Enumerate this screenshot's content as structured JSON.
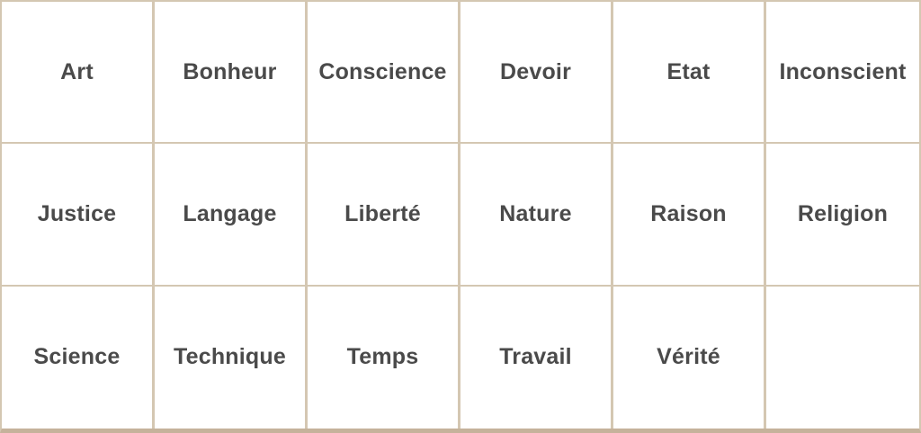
{
  "grid": {
    "rows": [
      [
        "Art",
        "Bonheur",
        "Conscience",
        "Devoir",
        "Etat",
        "Inconscient"
      ],
      [
        "Justice",
        "Langage",
        "Liberté",
        "Nature",
        "Raison",
        "Religion"
      ],
      [
        "Science",
        "Technique",
        "Temps",
        "Travail",
        "Vérité",
        ""
      ]
    ]
  },
  "colors": {
    "cell_background": "#ffffff",
    "grid_border": "#d4c7b2",
    "bottom_edge_border": "#c5b29b",
    "text": "#4a4a4a"
  }
}
